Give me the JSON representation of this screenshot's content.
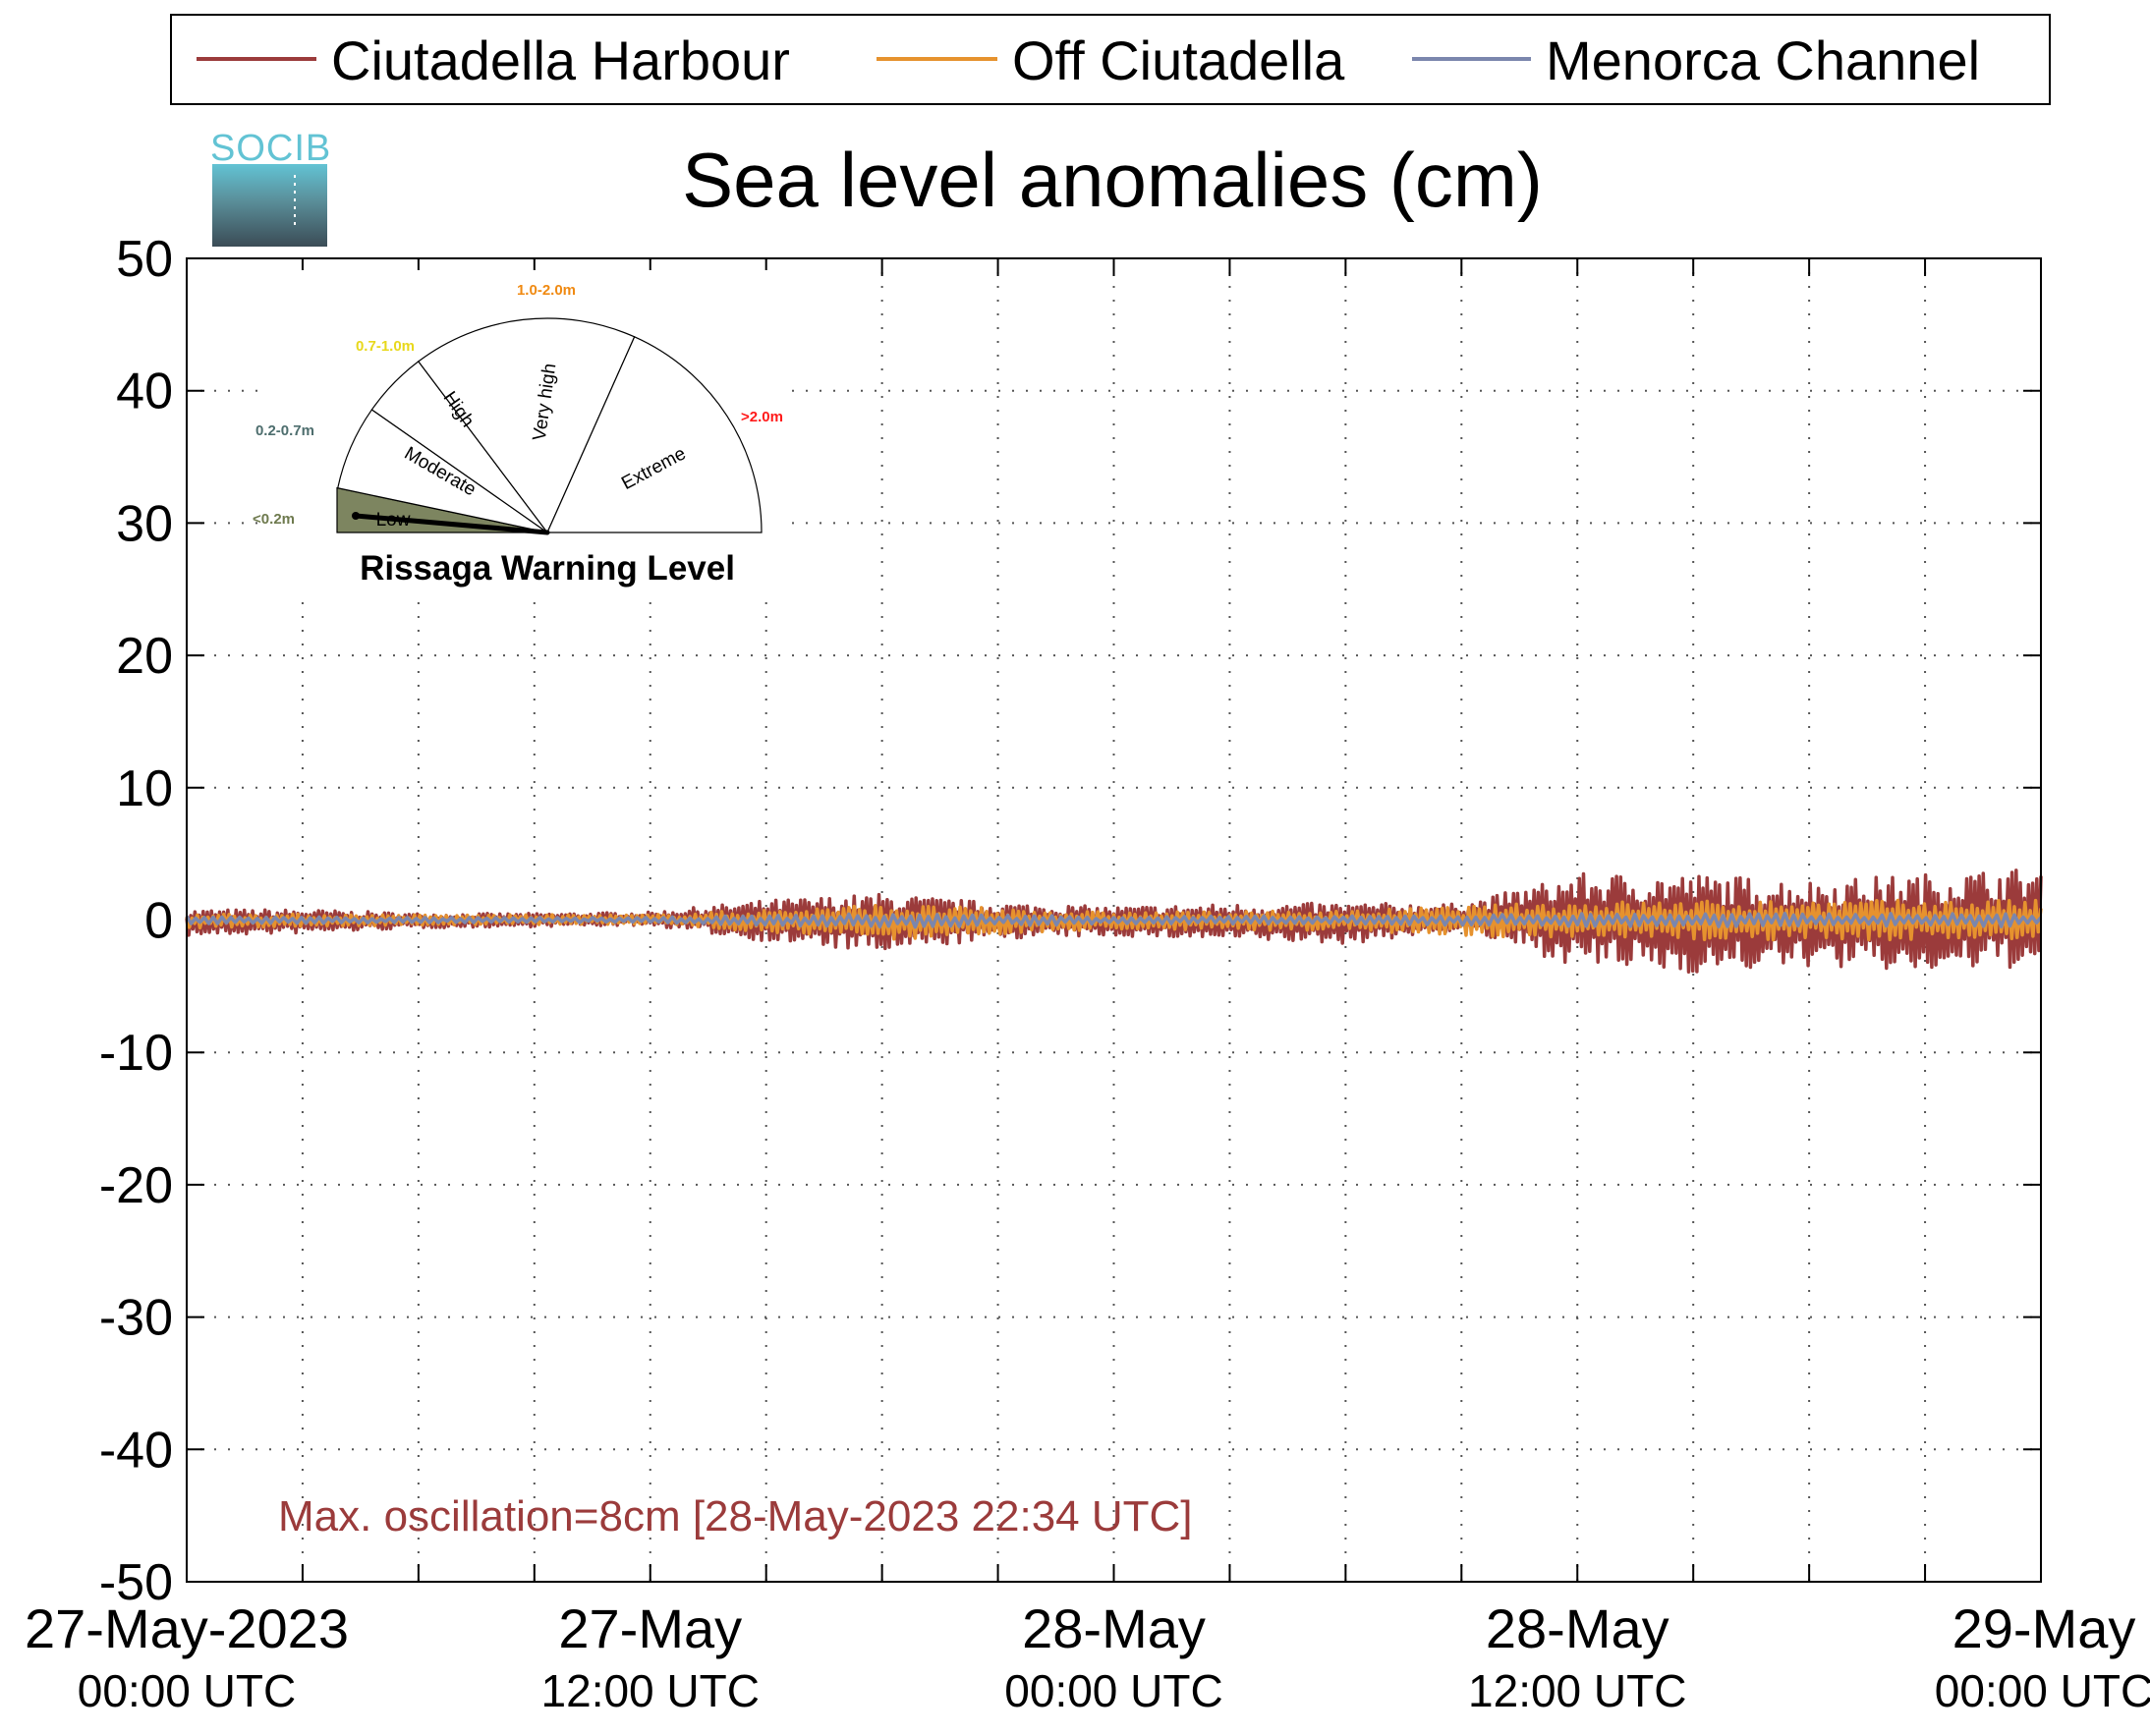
{
  "chart_data": {
    "type": "line",
    "title": "Sea level anomalies (cm)",
    "xlabel": "",
    "ylabel": "",
    "ylim": [
      -50,
      50
    ],
    "yticks": [
      50,
      40,
      30,
      20,
      10,
      0,
      -10,
      -20,
      -30,
      -40,
      -50
    ],
    "xlim": [
      "2023-05-27 00:00",
      "2023-05-29 00:00"
    ],
    "xtick_labels": [
      {
        "at": "2023-05-27 00:00",
        "line1": "27-May-2023",
        "line2": "00:00 UTC"
      },
      {
        "at": "2023-05-27 12:00",
        "line1": "27-May",
        "line2": "12:00 UTC"
      },
      {
        "at": "2023-05-28 00:00",
        "line1": "28-May",
        "line2": "00:00 UTC"
      },
      {
        "at": "2023-05-28 12:00",
        "line1": "28-May",
        "line2": "12:00 UTC"
      },
      {
        "at": "2023-05-29 00:00",
        "line1": "29-May",
        "line2": "00:00 UTC"
      }
    ],
    "minor_xticks": [
      "2023-05-27 03:00",
      "2023-05-27 06:00",
      "2023-05-27 09:00",
      "2023-05-27 15:00",
      "2023-05-27 18:00",
      "2023-05-27 21:00",
      "2023-05-28 03:00",
      "2023-05-28 06:00",
      "2023-05-28 09:00",
      "2023-05-28 15:00",
      "2023-05-28 18:00",
      "2023-05-28 21:00"
    ],
    "grid": true,
    "legend_position": "top",
    "series": [
      {
        "name": "Ciutadella Harbour",
        "color": "#9b3b3b",
        "envelope": {
          "x": [
            "2023-05-27 00:00",
            "2023-05-27 03:00",
            "2023-05-27 06:00",
            "2023-05-27 09:00",
            "2023-05-27 12:00",
            "2023-05-27 15:00",
            "2023-05-27 18:00",
            "2023-05-27 21:00",
            "2023-05-28 00:00",
            "2023-05-28 03:00",
            "2023-05-28 06:00",
            "2023-05-28 09:00",
            "2023-05-28 12:00",
            "2023-05-28 15:00",
            "2023-05-28 18:00",
            "2023-05-28 21:00",
            "2023-05-29 00:00"
          ],
          "low": [
            -1.2,
            -1.0,
            -0.6,
            -0.5,
            -0.4,
            -1.6,
            -2.5,
            -1.4,
            -1.2,
            -1.5,
            -1.8,
            -0.8,
            -3.5,
            -4.0,
            -3.5,
            -4.0,
            -3.5
          ],
          "high": [
            0.8,
            0.8,
            0.5,
            0.5,
            0.6,
            1.5,
            2.0,
            1.3,
            1.0,
            1.2,
            1.3,
            1.2,
            3.5,
            3.5,
            3.0,
            3.5,
            4.0
          ]
        }
      },
      {
        "name": "Off Ciutadella",
        "color": "#e6922e",
        "envelope": {
          "x": [
            "2023-05-27 00:00",
            "2023-05-27 06:00",
            "2023-05-27 12:00",
            "2023-05-27 18:00",
            "2023-05-28 00:00",
            "2023-05-28 06:00",
            "2023-05-28 12:00",
            "2023-05-28 18:00",
            "2023-05-29 00:00"
          ],
          "low": [
            -0.6,
            -0.4,
            -0.3,
            -1.5,
            -0.7,
            -0.8,
            -1.5,
            -1.5,
            -1.5
          ],
          "high": [
            0.5,
            0.4,
            0.4,
            1.2,
            0.6,
            0.7,
            1.4,
            1.5,
            1.5
          ]
        }
      },
      {
        "name": "Menorca Channel",
        "color": "#7b86ad",
        "envelope": {
          "x": [
            "2023-05-27 00:00",
            "2023-05-27 06:00",
            "2023-05-27 12:00",
            "2023-05-27 18:00",
            "2023-05-28 00:00",
            "2023-05-28 06:00",
            "2023-05-28 12:00",
            "2023-05-28 18:00",
            "2023-05-29 00:00"
          ],
          "low": [
            -0.3,
            -0.2,
            -0.2,
            -0.6,
            -0.3,
            -0.3,
            -0.5,
            -0.5,
            -0.5
          ],
          "high": [
            0.3,
            0.2,
            0.2,
            0.5,
            0.3,
            0.3,
            0.5,
            0.5,
            0.5
          ]
        }
      }
    ],
    "annotations": [
      {
        "text": "Max. oscillation=8cm [28-May-2023 22:34 UTC]",
        "color": "#9b3b3b"
      }
    ]
  },
  "logo": {
    "text": "SOCIB"
  },
  "gauge": {
    "title": "Rissaga Warning Level",
    "current_level": "Low",
    "sectors": [
      {
        "label": "Low",
        "range": "<0.2m",
        "range_color": "#6e7a4e",
        "fill": "#7d8560"
      },
      {
        "label": "Moderate",
        "range": "0.2-0.7m",
        "range_color": "#4e6e6e",
        "fill": "#ffffff"
      },
      {
        "label": "High",
        "range": "0.7-1.0m",
        "range_color": "#e8d81c",
        "fill": "#ffffff"
      },
      {
        "label": "Very high",
        "range": "1.0-2.0m",
        "range_color": "#f08a12",
        "fill": "#ffffff"
      },
      {
        "label": "Extreme",
        "range": ">2.0m",
        "range_color": "#ff1a1a",
        "fill": "#ffffff"
      }
    ]
  }
}
